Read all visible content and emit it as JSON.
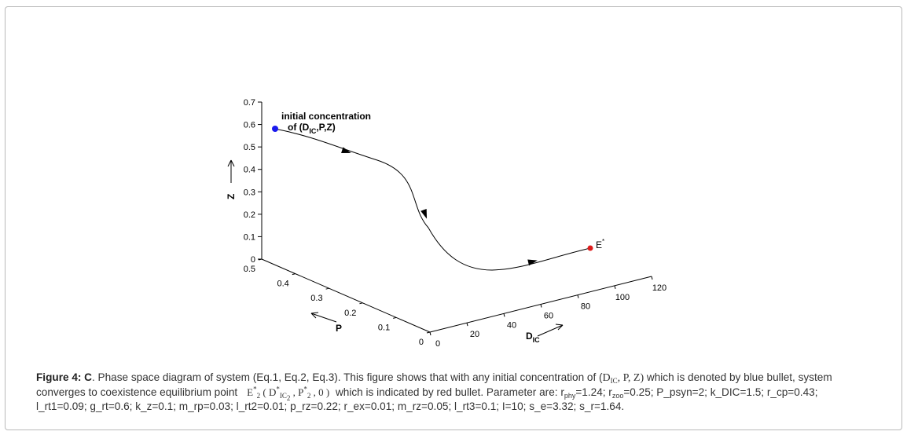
{
  "chart_data": {
    "type": "line",
    "projection": "3d",
    "x_axis": {
      "label": "D",
      "label_subscript": "IC",
      "ticks": [
        "0",
        "20",
        "40",
        "60",
        "80",
        "100",
        "120"
      ]
    },
    "y_axis": {
      "label": "P",
      "ticks": [
        "0",
        "0.1",
        "0.2",
        "0.3",
        "0.4",
        "0.5"
      ]
    },
    "z_axis": {
      "label": "Z",
      "ticks": [
        "0",
        "0.1",
        "0.2",
        "0.3",
        "0.4",
        "0.5",
        "0.6",
        "0.7"
      ]
    },
    "trajectory_color": "#000000",
    "start_point": {
      "color": "#1a1aee",
      "label_line1": "initial concentration",
      "label_line2_prefix": "of (D",
      "label_line2_sub": "IC",
      "label_line2_suffix": ",P,Z)"
    },
    "end_point": {
      "color": "#dd1c1c",
      "label": "E",
      "label_superscript": "*"
    }
  },
  "caption": {
    "bold_prefix": "Figure 4: C",
    "part1": ". Phase space diagram of system (Eq.1, Eq.2, Eq.3). This figure shows that with any initial concentration of (",
    "math1_d": "D",
    "math1_sub": "IC",
    "math1_rest": ", P, Z)",
    "part2": " which is denoted by blue bullet, system converges to coexistence equilibrium point",
    "eq_label": "E",
    "eq_sup": "*",
    "eq_sub": "2",
    "eq_open": "( D",
    "eq_d_sup": "*",
    "eq_d_sub": "IC",
    "eq_d_sub2": "2",
    "eq_mid": " , P",
    "eq_p_sup": "*",
    "eq_p_sub": "2",
    "eq_close": " , 0 )",
    "part3": " which is indicated by red bullet. Parameter are: r",
    "rphy_sub": "phy",
    "part4": "=1.24; r",
    "rzoo_sub": "zoo",
    "part5": "=0.25; P_psyn=2; k_DIC=1.5; r_cp=0.43; l_rt1=0.09; g_rt=0.6; k_z=0.1; m_rp=0.03; l_rt2=0.01; p_rz=0.22; r_ex=0.01; m_rz=0.05; l_rt3=0.1; I=10; s_e=3.32; s_r=1.64."
  }
}
